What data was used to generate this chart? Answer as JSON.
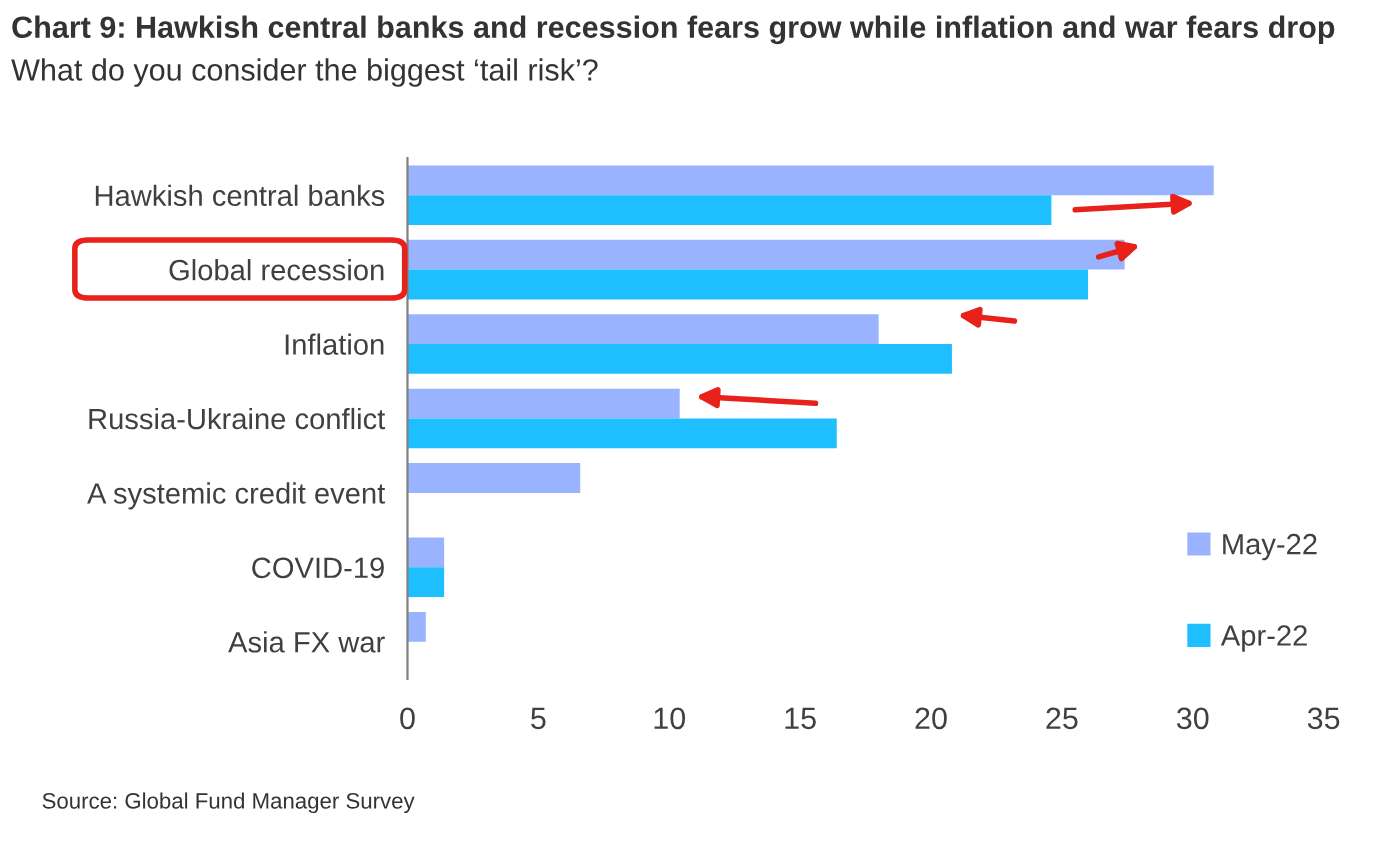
{
  "chart_data": {
    "type": "bar",
    "orientation": "horizontal",
    "title": "Chart 9: Hawkish central banks and recession fears grow while inflation and war fears drop",
    "subtitle": "What do you consider the biggest ‘tail risk’?",
    "categories": [
      "Hawkish central banks",
      "Global recession",
      "Inflation",
      "Russia-Ukraine conflict",
      "A systemic credit event",
      "COVID-19",
      "Asia FX war"
    ],
    "series": [
      {
        "name": "May-22",
        "color": "#99b3ff",
        "values": [
          30.8,
          27.4,
          18.0,
          10.4,
          6.6,
          1.4,
          0.7
        ]
      },
      {
        "name": "Apr-22",
        "color": "#1fbfff",
        "values": [
          24.6,
          26.0,
          20.8,
          16.4,
          null,
          1.4,
          null
        ]
      }
    ],
    "xlim": [
      0,
      35
    ],
    "xticks": [
      0,
      5,
      10,
      15,
      20,
      25,
      30,
      35
    ],
    "grid": false,
    "legend": "bottom right",
    "annotations": [
      "Source: Global Fund Manager Survey"
    ]
  }
}
